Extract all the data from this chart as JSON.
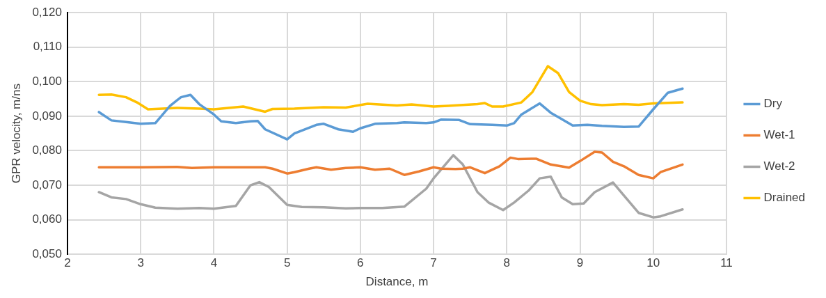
{
  "chart_data": {
    "type": "line",
    "xlabel": "Distance, m",
    "ylabel": "GPR velocity, m/ns",
    "xlim": [
      2,
      11
    ],
    "xticks": [
      2,
      3,
      4,
      5,
      6,
      7,
      8,
      9,
      10,
      11
    ],
    "ylim": [
      0.05,
      0.12
    ],
    "yticks": [
      {
        "value": 0.05,
        "label": "0,050"
      },
      {
        "value": 0.06,
        "label": "0,060"
      },
      {
        "value": 0.07,
        "label": "0,070"
      },
      {
        "value": 0.08,
        "label": "0,080"
      },
      {
        "value": 0.09,
        "label": "0,090"
      },
      {
        "value": 0.1,
        "label": "0,100"
      },
      {
        "value": 0.11,
        "label": "0,110"
      },
      {
        "value": 0.12,
        "label": "0,120"
      }
    ],
    "grid": true,
    "legend": "right",
    "marker": "none",
    "line_style": "solid",
    "series": [
      {
        "name": "Dry",
        "color": "#5b9bd5",
        "x": [
          2.43,
          2.6,
          2.8,
          3.0,
          3.2,
          3.4,
          3.55,
          3.68,
          3.8,
          4.0,
          4.1,
          4.3,
          4.5,
          4.6,
          4.7,
          5.0,
          5.1,
          5.4,
          5.5,
          5.7,
          5.9,
          6.0,
          6.2,
          6.5,
          6.6,
          6.9,
          7.0,
          7.1,
          7.35,
          7.5,
          7.8,
          8.0,
          8.1,
          8.2,
          8.45,
          8.6,
          8.7,
          8.9,
          9.1,
          9.3,
          9.6,
          9.8,
          10.0,
          10.2,
          10.4
        ],
        "values": [
          0.0912,
          0.0888,
          0.0883,
          0.0878,
          0.088,
          0.093,
          0.0955,
          0.0962,
          0.0935,
          0.0905,
          0.0885,
          0.088,
          0.0885,
          0.0886,
          0.0862,
          0.0833,
          0.085,
          0.0875,
          0.0878,
          0.0862,
          0.0855,
          0.0865,
          0.0878,
          0.088,
          0.0882,
          0.088,
          0.0882,
          0.089,
          0.0889,
          0.0877,
          0.0875,
          0.0873,
          0.088,
          0.0905,
          0.0937,
          0.091,
          0.0898,
          0.0873,
          0.0875,
          0.0872,
          0.0869,
          0.087,
          0.092,
          0.0968,
          0.098
        ]
      },
      {
        "name": "Wet-1",
        "color": "#ed7d31",
        "x": [
          2.43,
          3.0,
          3.5,
          3.7,
          4.0,
          4.7,
          4.8,
          5.0,
          5.1,
          5.3,
          5.4,
          5.6,
          5.8,
          6.0,
          6.2,
          6.4,
          6.6,
          6.8,
          7.0,
          7.1,
          7.3,
          7.4,
          7.5,
          7.7,
          7.9,
          8.05,
          8.15,
          8.4,
          8.6,
          8.85,
          9.0,
          9.2,
          9.3,
          9.45,
          9.6,
          9.8,
          10.0,
          10.1,
          10.4
        ],
        "values": [
          0.0752,
          0.0752,
          0.0753,
          0.075,
          0.0752,
          0.0752,
          0.0748,
          0.0734,
          0.0738,
          0.0748,
          0.0752,
          0.0745,
          0.075,
          0.0752,
          0.0745,
          0.0748,
          0.073,
          0.074,
          0.0752,
          0.0748,
          0.0747,
          0.0748,
          0.0752,
          0.0735,
          0.0755,
          0.078,
          0.0776,
          0.0777,
          0.076,
          0.0751,
          0.077,
          0.0797,
          0.0795,
          0.0768,
          0.0755,
          0.073,
          0.072,
          0.0738,
          0.076
        ]
      },
      {
        "name": "Wet-2",
        "color": "#a5a5a5",
        "x": [
          2.43,
          2.6,
          2.8,
          3.0,
          3.2,
          3.5,
          3.8,
          4.0,
          4.3,
          4.5,
          4.62,
          4.75,
          5.0,
          5.2,
          5.5,
          5.8,
          6.0,
          6.3,
          6.6,
          6.9,
          7.0,
          7.27,
          7.4,
          7.6,
          7.75,
          7.95,
          8.1,
          8.3,
          8.45,
          8.6,
          8.75,
          8.9,
          9.05,
          9.2,
          9.45,
          9.6,
          9.8,
          10.0,
          10.1,
          10.4
        ],
        "values": [
          0.068,
          0.0665,
          0.066,
          0.0645,
          0.0635,
          0.0632,
          0.0634,
          0.0632,
          0.064,
          0.07,
          0.0709,
          0.0695,
          0.0643,
          0.0637,
          0.0636,
          0.0633,
          0.0634,
          0.0634,
          0.0638,
          0.069,
          0.072,
          0.0787,
          0.076,
          0.068,
          0.065,
          0.0628,
          0.065,
          0.0685,
          0.072,
          0.0725,
          0.0665,
          0.0645,
          0.0647,
          0.068,
          0.0708,
          0.067,
          0.062,
          0.0607,
          0.061,
          0.063
        ]
      },
      {
        "name": "Drained",
        "color": "#ffc000",
        "x": [
          2.43,
          2.6,
          2.8,
          2.95,
          3.1,
          3.5,
          3.8,
          4.0,
          4.4,
          4.7,
          4.8,
          5.1,
          5.5,
          5.8,
          6.1,
          6.5,
          6.7,
          7.0,
          7.2,
          7.6,
          7.7,
          7.8,
          7.95,
          8.2,
          8.35,
          8.56,
          8.7,
          8.85,
          9.0,
          9.15,
          9.3,
          9.6,
          9.8,
          10.0,
          10.4
        ],
        "values": [
          0.0962,
          0.0963,
          0.0955,
          0.094,
          0.092,
          0.0924,
          0.0922,
          0.092,
          0.0928,
          0.0913,
          0.0921,
          0.0922,
          0.0926,
          0.0925,
          0.0936,
          0.0931,
          0.0934,
          0.0928,
          0.093,
          0.0935,
          0.0938,
          0.0928,
          0.0928,
          0.094,
          0.097,
          0.1045,
          0.1025,
          0.097,
          0.0945,
          0.0935,
          0.0932,
          0.0935,
          0.0933,
          0.0937,
          0.094
        ]
      }
    ]
  }
}
